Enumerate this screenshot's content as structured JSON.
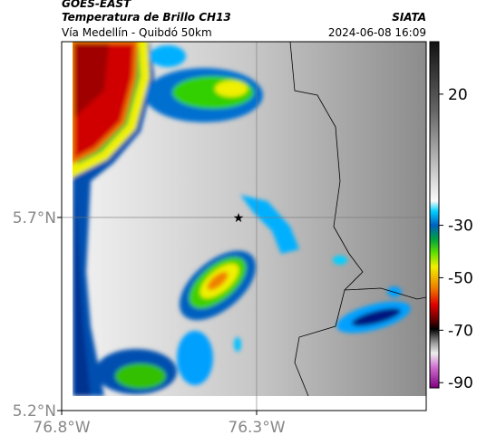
{
  "header": {
    "satellite": "GOES-EAST",
    "product": "Temperatura de Brillo CH13",
    "route": "Vía Medellín - Quibdó 50km",
    "source": "SIATA",
    "datetime": "2024-06-08 16:09"
  },
  "map": {
    "xlim": [
      -76.8,
      -75.865
    ],
    "ylim": [
      5.2,
      6.155
    ],
    "xticks": [
      {
        "value": -76.8,
        "label": "76.8°W"
      },
      {
        "value": -76.3,
        "label": "76.3°W"
      }
    ],
    "yticks": [
      {
        "value": 5.2,
        "label": "5.2°N"
      },
      {
        "value": 5.7,
        "label": "5.7°N"
      }
    ],
    "grid": true
  },
  "colorbar": {
    "lim": [
      40,
      -92
    ],
    "ticks": [
      20,
      -30,
      -50,
      -70,
      -90
    ]
  }
}
